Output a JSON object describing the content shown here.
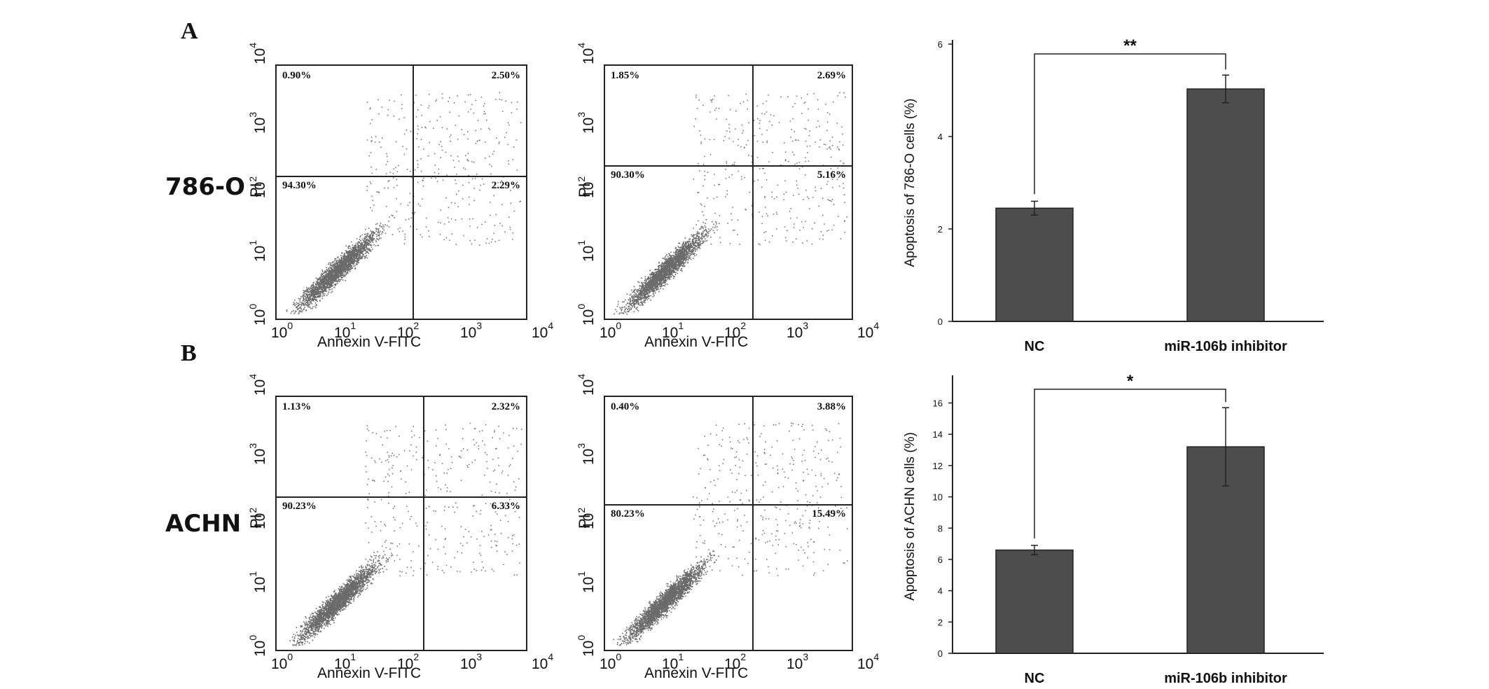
{
  "panels": [
    {
      "letter": "A",
      "row_label": "786-O"
    },
    {
      "letter": "B",
      "row_label": "ACHN"
    }
  ],
  "flow_axes": {
    "x_title": "Annexin V-FITC",
    "y_title": "PI",
    "tick_base": "10",
    "tick_exp": [
      "0",
      "1",
      "2",
      "3",
      "4"
    ]
  },
  "flow_plots": [
    {
      "id": "786-O NC",
      "quadrants": {
        "ul": "0.90%",
        "ur": "2.50%",
        "ll": "94.30%",
        "lr": "2.29%"
      },
      "gate_x": 0.54,
      "gate_y": 0.43
    },
    {
      "id": "786-O inhibitor",
      "quadrants": {
        "ul": "1.85%",
        "ur": "2.69%",
        "ll": "90.30%",
        "lr": "5.16%"
      },
      "gate_x": 0.59,
      "gate_y": 0.39
    },
    {
      "id": "ACHN NC",
      "quadrants": {
        "ul": "1.13%",
        "ur": "2.32%",
        "ll": "90.23%",
        "lr": "6.33%"
      },
      "gate_x": 0.58,
      "gate_y": 0.39
    },
    {
      "id": "ACHN inhibitor",
      "quadrants": {
        "ul": "0.40%",
        "ur": "3.88%",
        "ll": "80.23%",
        "lr": "15.49%"
      },
      "gate_x": 0.59,
      "gate_y": 0.42
    }
  ],
  "chart_data": [
    {
      "type": "bar",
      "categories": [
        "NC",
        "miR-106b inhibitor"
      ],
      "values": [
        2.45,
        5.03
      ],
      "errors": [
        0.15,
        0.3
      ],
      "ylabel": "Apoptosis of 786-O cells (%)",
      "ylim": [
        0,
        6
      ],
      "yticks": [
        "0",
        "2",
        "4",
        "6"
      ],
      "significance": "**",
      "bar_color": "#4d4d4d"
    },
    {
      "type": "bar",
      "categories": [
        "NC",
        "miR-106b inhibitor"
      ],
      "values": [
        6.6,
        13.2
      ],
      "errors": [
        0.3,
        2.5
      ],
      "ylabel": "Apoptosis of ACHN cells (%)",
      "ylim": [
        0,
        17.5
      ],
      "yticks": [
        "0",
        "2",
        "4",
        "6",
        "8",
        "10",
        "12",
        "14",
        "16"
      ],
      "significance": "*",
      "bar_color": "#4d4d4d"
    }
  ]
}
